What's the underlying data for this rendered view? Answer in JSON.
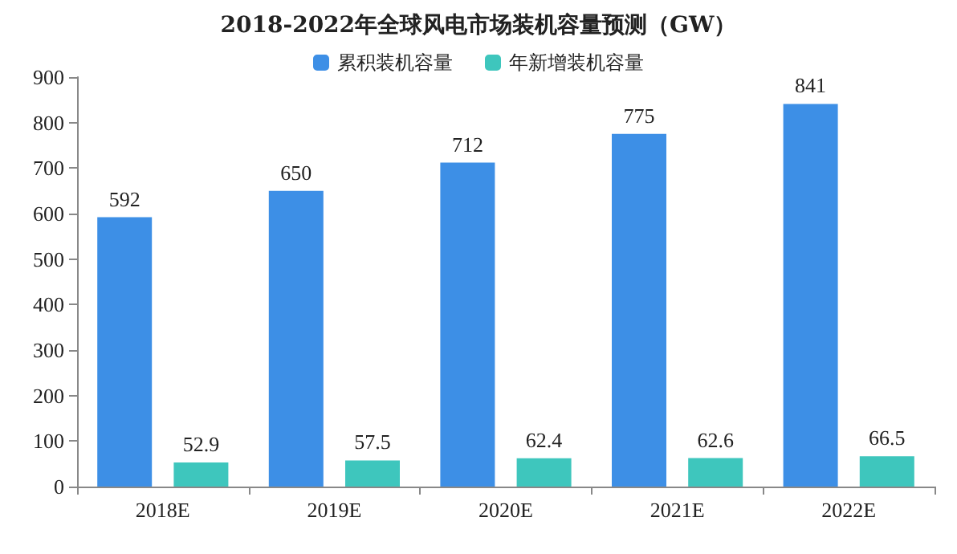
{
  "chart_data": {
    "type": "bar",
    "title": "2018-2022年全球风电市场装机容量预测（GW）",
    "categories": [
      "2018E",
      "2019E",
      "2020E",
      "2021E",
      "2022E"
    ],
    "series": [
      {
        "name": "累积装机容量",
        "color": "#3d8fe6",
        "values": [
          592,
          650,
          712,
          775,
          841
        ]
      },
      {
        "name": "年新增装机容量",
        "color": "#3ec6bd",
        "values": [
          52.9,
          57.5,
          62.4,
          62.6,
          66.5
        ]
      }
    ],
    "ylim": [
      0,
      900
    ],
    "yticks": [
      0,
      100,
      200,
      300,
      400,
      500,
      600,
      700,
      800,
      900
    ],
    "grid": false,
    "legend": "top",
    "data_labels": true
  }
}
